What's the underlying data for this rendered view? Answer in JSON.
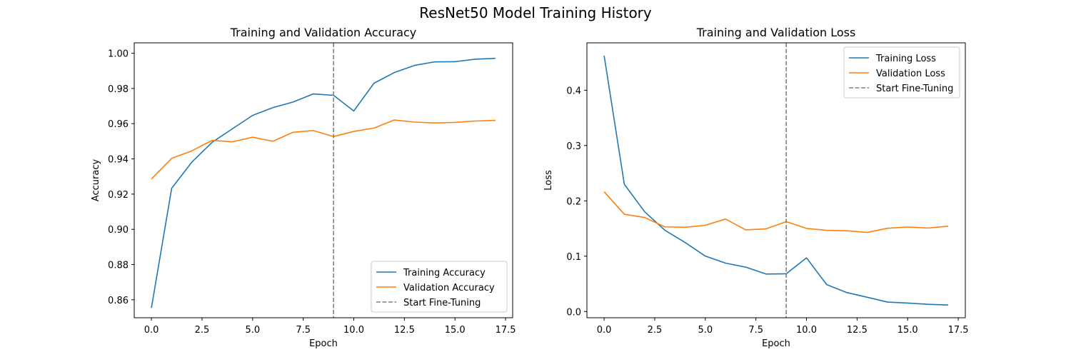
{
  "figure": {
    "title": "ResNet50 Model Training History"
  },
  "chart_data": [
    {
      "type": "line",
      "title": "Training and Validation Accuracy",
      "xlabel": "Epoch",
      "ylabel": "Accuracy",
      "xlim": [
        -0.85,
        17.85
      ],
      "ylim": [
        0.8498,
        1.0059
      ],
      "xticks": [
        0.0,
        2.5,
        5.0,
        7.5,
        10.0,
        12.5,
        15.0,
        17.5
      ],
      "xtick_labels": [
        "0.0",
        "2.5",
        "5.0",
        "7.5",
        "10.0",
        "12.5",
        "15.0",
        "17.5"
      ],
      "yticks": [
        0.86,
        0.88,
        0.9,
        0.92,
        0.94,
        0.96,
        0.98,
        1.0
      ],
      "ytick_labels": [
        "0.86",
        "0.88",
        "0.90",
        "0.92",
        "0.94",
        "0.96",
        "0.98",
        "1.00"
      ],
      "grid": false,
      "legend_position": "lower-right",
      "x": [
        0,
        1,
        2,
        3,
        4,
        5,
        6,
        7,
        8,
        9,
        10,
        11,
        12,
        13,
        14,
        15,
        16,
        17
      ],
      "series": [
        {
          "name": "Training Accuracy",
          "color": "#1f77b4",
          "values": [
            0.8554,
            0.9233,
            0.9382,
            0.9494,
            0.9571,
            0.9647,
            0.9691,
            0.9723,
            0.9769,
            0.9761,
            0.9672,
            0.983,
            0.989,
            0.9931,
            0.9951,
            0.9952,
            0.9966,
            0.9971
          ]
        },
        {
          "name": "Validation Accuracy",
          "color": "#ff7f0e",
          "values": [
            0.9286,
            0.9403,
            0.9446,
            0.9505,
            0.9497,
            0.9523,
            0.95,
            0.9551,
            0.9561,
            0.9527,
            0.9556,
            0.9575,
            0.9621,
            0.9609,
            0.9604,
            0.9607,
            0.9615,
            0.9619
          ]
        }
      ],
      "vline": {
        "name": "Start Fine-Tuning",
        "x": 9,
        "color": "#808080"
      }
    },
    {
      "type": "line",
      "title": "Training and Validation Loss",
      "xlabel": "Epoch",
      "ylabel": "Loss",
      "xlim": [
        -0.85,
        17.85
      ],
      "ylim": [
        -0.0112,
        0.4856
      ],
      "xticks": [
        0.0,
        2.5,
        5.0,
        7.5,
        10.0,
        12.5,
        15.0,
        17.5
      ],
      "xtick_labels": [
        "0.0",
        "2.5",
        "5.0",
        "7.5",
        "10.0",
        "12.5",
        "15.0",
        "17.5"
      ],
      "yticks": [
        0.0,
        0.1,
        0.2,
        0.3,
        0.4
      ],
      "ytick_labels": [
        "0.0",
        "0.1",
        "0.2",
        "0.3",
        "0.4"
      ],
      "grid": false,
      "legend_position": "upper-right",
      "x": [
        0,
        1,
        2,
        3,
        4,
        5,
        6,
        7,
        8,
        9,
        10,
        11,
        12,
        13,
        14,
        15,
        16,
        17
      ],
      "series": [
        {
          "name": "Training Loss",
          "color": "#1f77b4",
          "values": [
            0.4626,
            0.2299,
            0.1805,
            0.147,
            0.1249,
            0.1002,
            0.0875,
            0.0802,
            0.0678,
            0.0682,
            0.097,
            0.0486,
            0.0342,
            0.0258,
            0.0171,
            0.0153,
            0.0131,
            0.0118
          ]
        },
        {
          "name": "Validation Loss",
          "color": "#ff7f0e",
          "values": [
            0.2166,
            0.1758,
            0.17,
            0.153,
            0.1523,
            0.1559,
            0.1671,
            0.1476,
            0.1494,
            0.1625,
            0.1502,
            0.1468,
            0.146,
            0.1429,
            0.1505,
            0.1528,
            0.1509,
            0.1542
          ]
        }
      ],
      "vline": {
        "name": "Start Fine-Tuning",
        "x": 9,
        "color": "#808080"
      }
    }
  ]
}
